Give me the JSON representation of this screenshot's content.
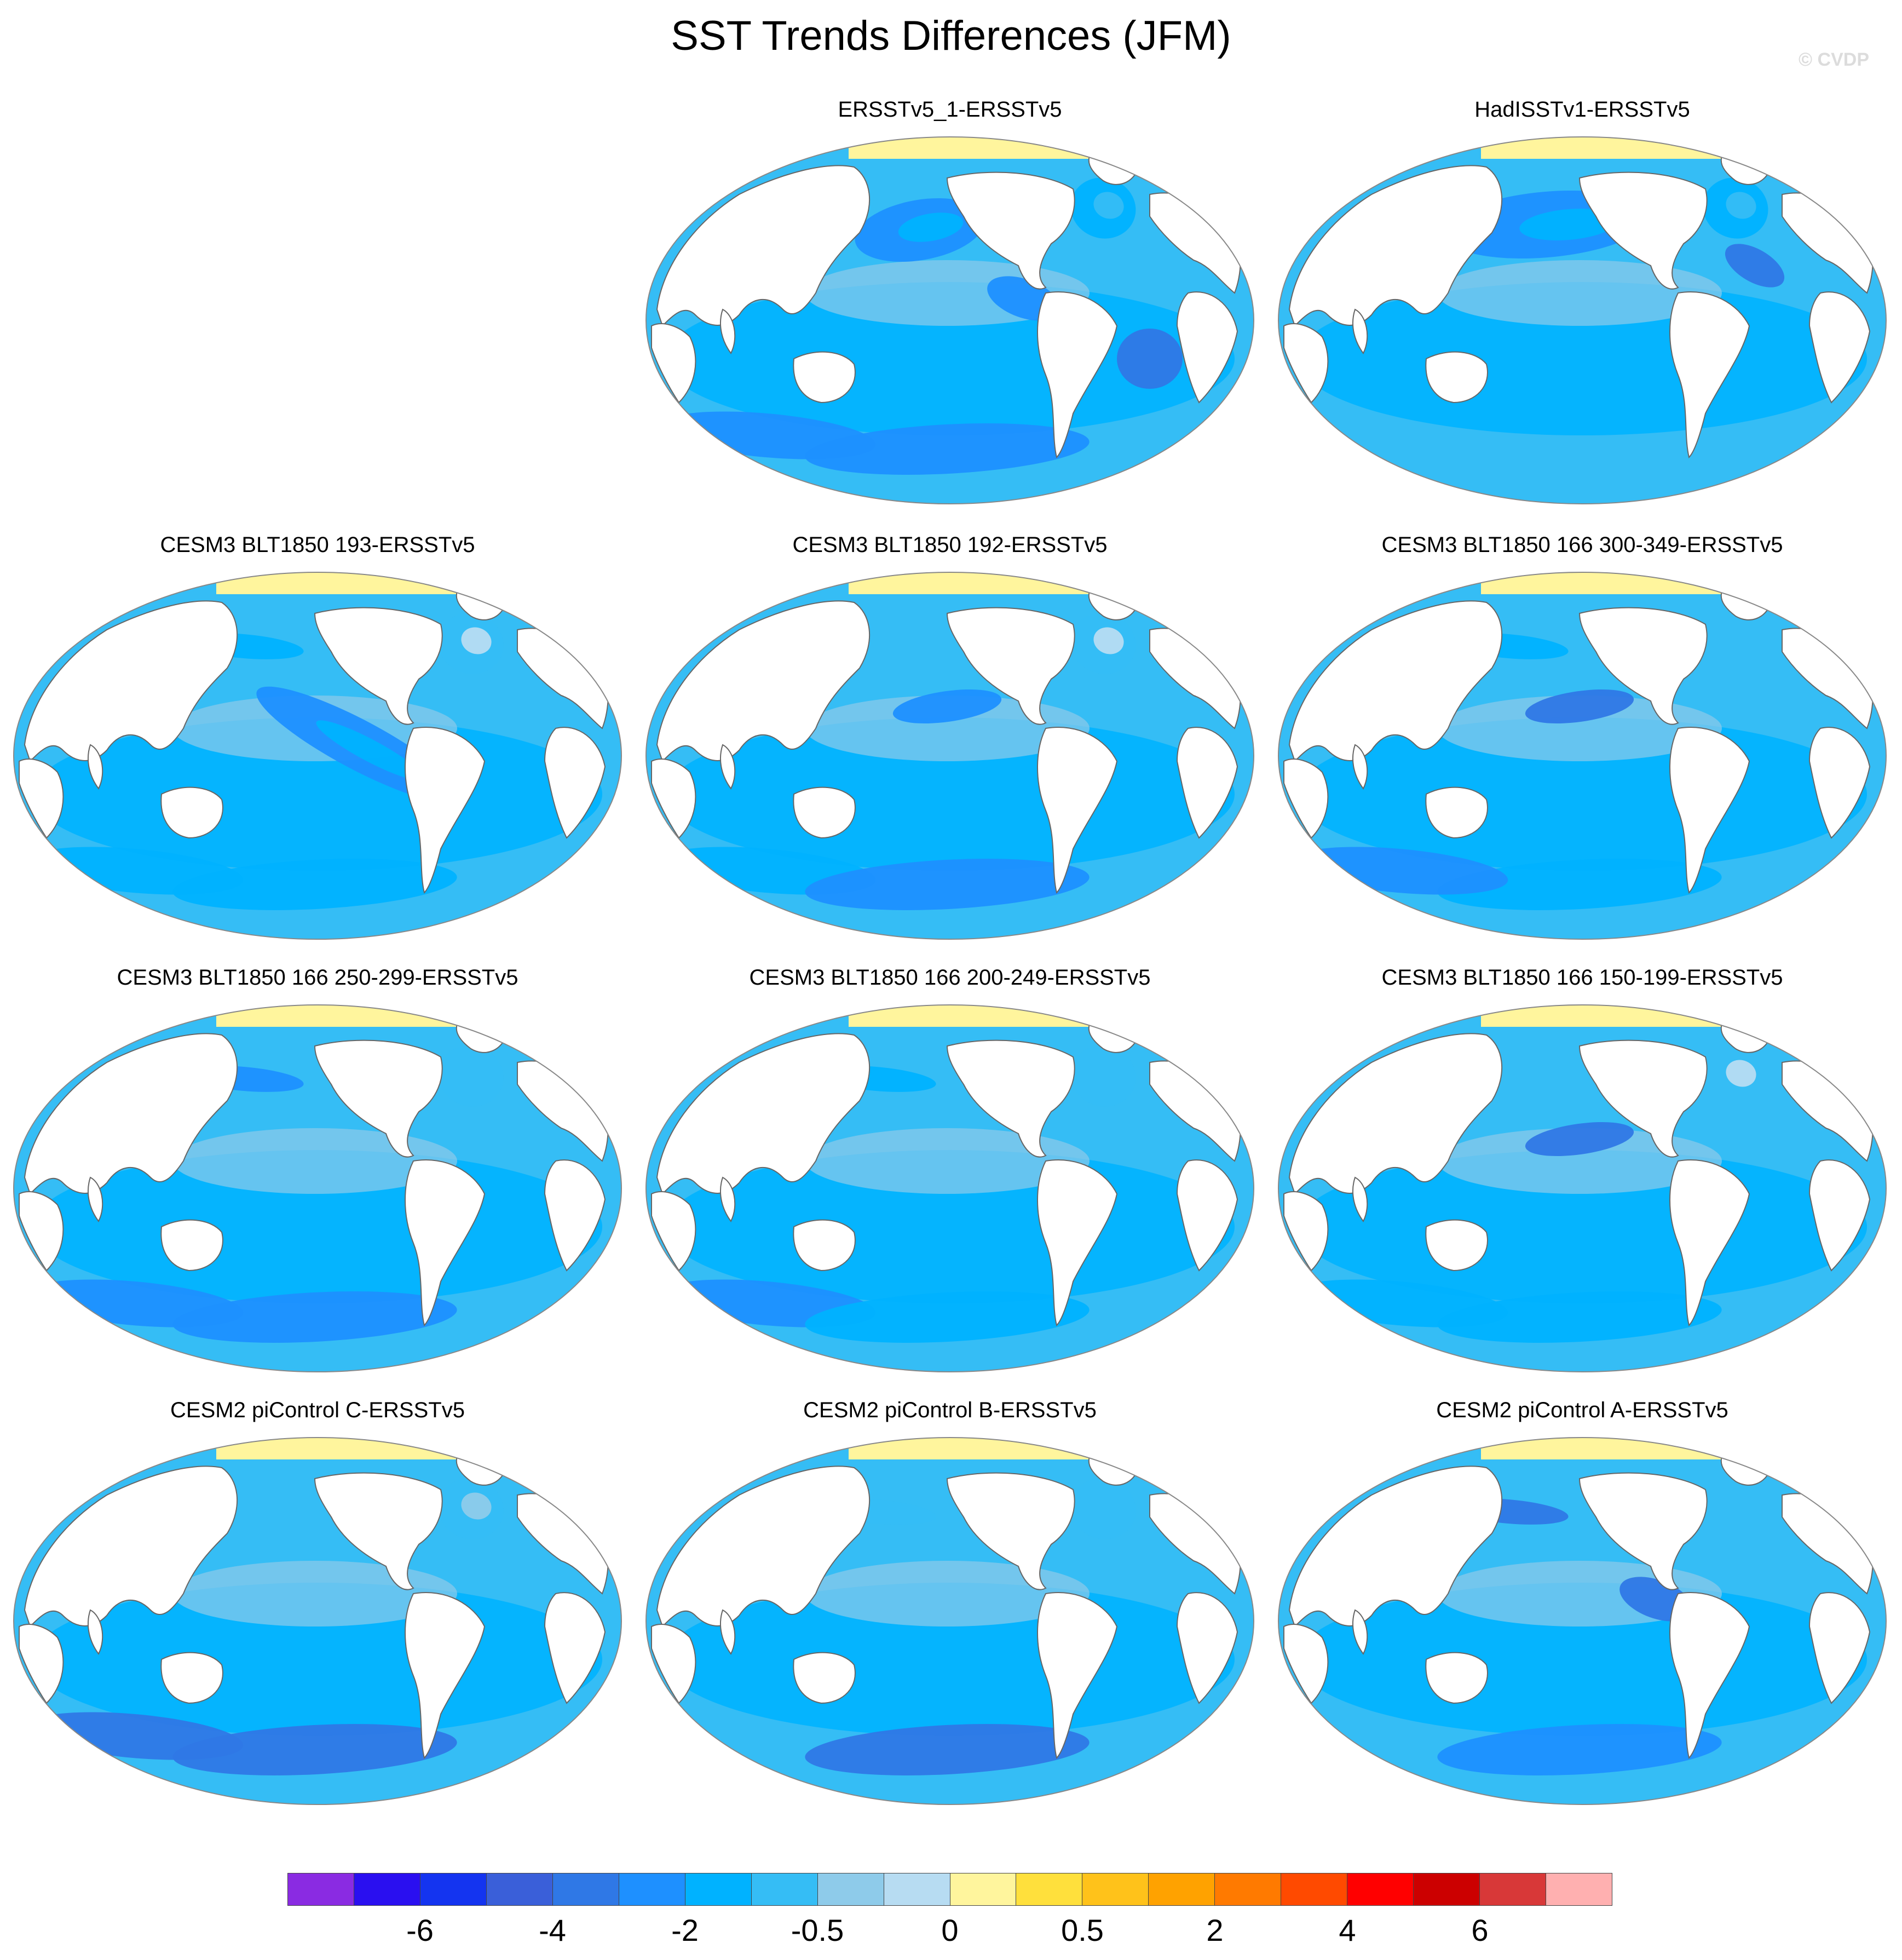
{
  "title": "SST Trends Differences (JFM)",
  "copyright": "© CVDP",
  "panels": [
    {
      "label": "ERSSTv5_1-ERSSTv5",
      "blobs": [
        [
          "pac-north-east",
          5
        ],
        [
          "pac-north-east-core",
          6
        ],
        [
          "pac-east-eq",
          5
        ],
        [
          "atl-north",
          6
        ],
        [
          "atl-north-core",
          7
        ],
        [
          "south-atl-sub",
          4
        ],
        [
          "southern-ocean-1",
          5
        ],
        [
          "southern-ocean-2",
          5
        ]
      ]
    },
    {
      "label": "HadISSTv1-ERSSTv5",
      "blobs": [
        [
          "pac-north-wide",
          5
        ],
        [
          "pac-north-wide-core",
          6
        ],
        [
          "atl-north",
          6
        ],
        [
          "atl-north-core",
          7
        ],
        [
          "atl-sub",
          4
        ]
      ]
    },
    {
      "label": "CESM3 BLT1850 193-ERSSTv5",
      "blobs": [
        [
          "pac-kuroshio",
          6
        ],
        [
          "pac-tongue",
          5
        ],
        [
          "pac-tongue-core",
          6
        ],
        [
          "atl-north",
          7
        ],
        [
          "atl-north-core",
          9
        ],
        [
          "southern-ocean-1",
          6
        ],
        [
          "southern-ocean-2",
          6
        ]
      ]
    },
    {
      "label": "CESM3 BLT1850 192-ERSSTv5",
      "blobs": [
        [
          "atl-north",
          7
        ],
        [
          "atl-north-core",
          9
        ],
        [
          "pac-mid",
          5
        ],
        [
          "southern-ocean-1",
          6
        ],
        [
          "southern-ocean-2",
          5
        ]
      ]
    },
    {
      "label": "CESM3 BLT1850 166 300-349-ERSSTv5",
      "blobs": [
        [
          "pac-kuroshio",
          6
        ],
        [
          "pac-mid",
          4
        ],
        [
          "southern-ocean-2",
          6
        ],
        [
          "southern-ocean-1",
          5
        ]
      ]
    },
    {
      "label": "CESM3 BLT1850 166 250-299-ERSSTv5",
      "blobs": [
        [
          "atl-north",
          7
        ],
        [
          "pac-kuroshio",
          5
        ],
        [
          "southern-ocean-1",
          5
        ],
        [
          "southern-ocean-2",
          5
        ]
      ]
    },
    {
      "label": "CESM3 BLT1850 166 200-249-ERSSTv5",
      "blobs": [
        [
          "atl-north",
          7
        ],
        [
          "pac-kuroshio",
          6
        ],
        [
          "southern-ocean-1",
          5
        ],
        [
          "southern-ocean-2",
          6
        ]
      ]
    },
    {
      "label": "CESM3 BLT1850 166 150-199-ERSSTv5",
      "blobs": [
        [
          "atl-north-core",
          9
        ],
        [
          "pac-mid",
          4
        ],
        [
          "southern-ocean-1",
          6
        ],
        [
          "southern-ocean-2",
          6
        ]
      ]
    },
    {
      "label": "CESM2 piControl C-ERSSTv5",
      "blobs": [
        [
          "atl-north",
          7
        ],
        [
          "atl-north-core",
          8
        ],
        [
          "southern-ocean-1",
          4
        ],
        [
          "southern-ocean-2",
          4
        ]
      ]
    },
    {
      "label": "CESM2 piControl B-ERSSTv5",
      "blobs": [
        [
          "atl-north",
          7
        ],
        [
          "pac-kuroshio",
          7
        ],
        [
          "southern-ocean-2",
          4
        ]
      ]
    },
    {
      "label": "CESM2 piControl A-ERSSTv5",
      "blobs": [
        [
          "pac-kuroshio",
          4
        ],
        [
          "southern-ocean-2",
          5
        ],
        [
          "pac-east-eq",
          4
        ]
      ]
    }
  ],
  "colorbar": {
    "colors": [
      "#8a2be2",
      "#2a0ff0",
      "#1434f0",
      "#3a5fd9",
      "#2f78e6",
      "#1e90ff",
      "#00b2ff",
      "#35bdf5",
      "#8ecbea",
      "#b7dcf2",
      "#fff59d",
      "#ffe03c",
      "#ffc21a",
      "#ffa200",
      "#ff7a00",
      "#ff4a00",
      "#ff0000",
      "#cc0000",
      "#d83838",
      "#ffb0b0"
    ],
    "labels": [
      {
        "text": "-6",
        "boundary": 2
      },
      {
        "text": "-4",
        "boundary": 4
      },
      {
        "text": "-2",
        "boundary": 6
      },
      {
        "text": "-0.5",
        "boundary": 8
      },
      {
        "text": "0",
        "boundary": 10
      },
      {
        "text": "0.5",
        "boundary": 12
      },
      {
        "text": "2",
        "boundary": 14
      },
      {
        "text": "4",
        "boundary": 16
      },
      {
        "text": "6",
        "boundary": 18
      }
    ]
  }
}
